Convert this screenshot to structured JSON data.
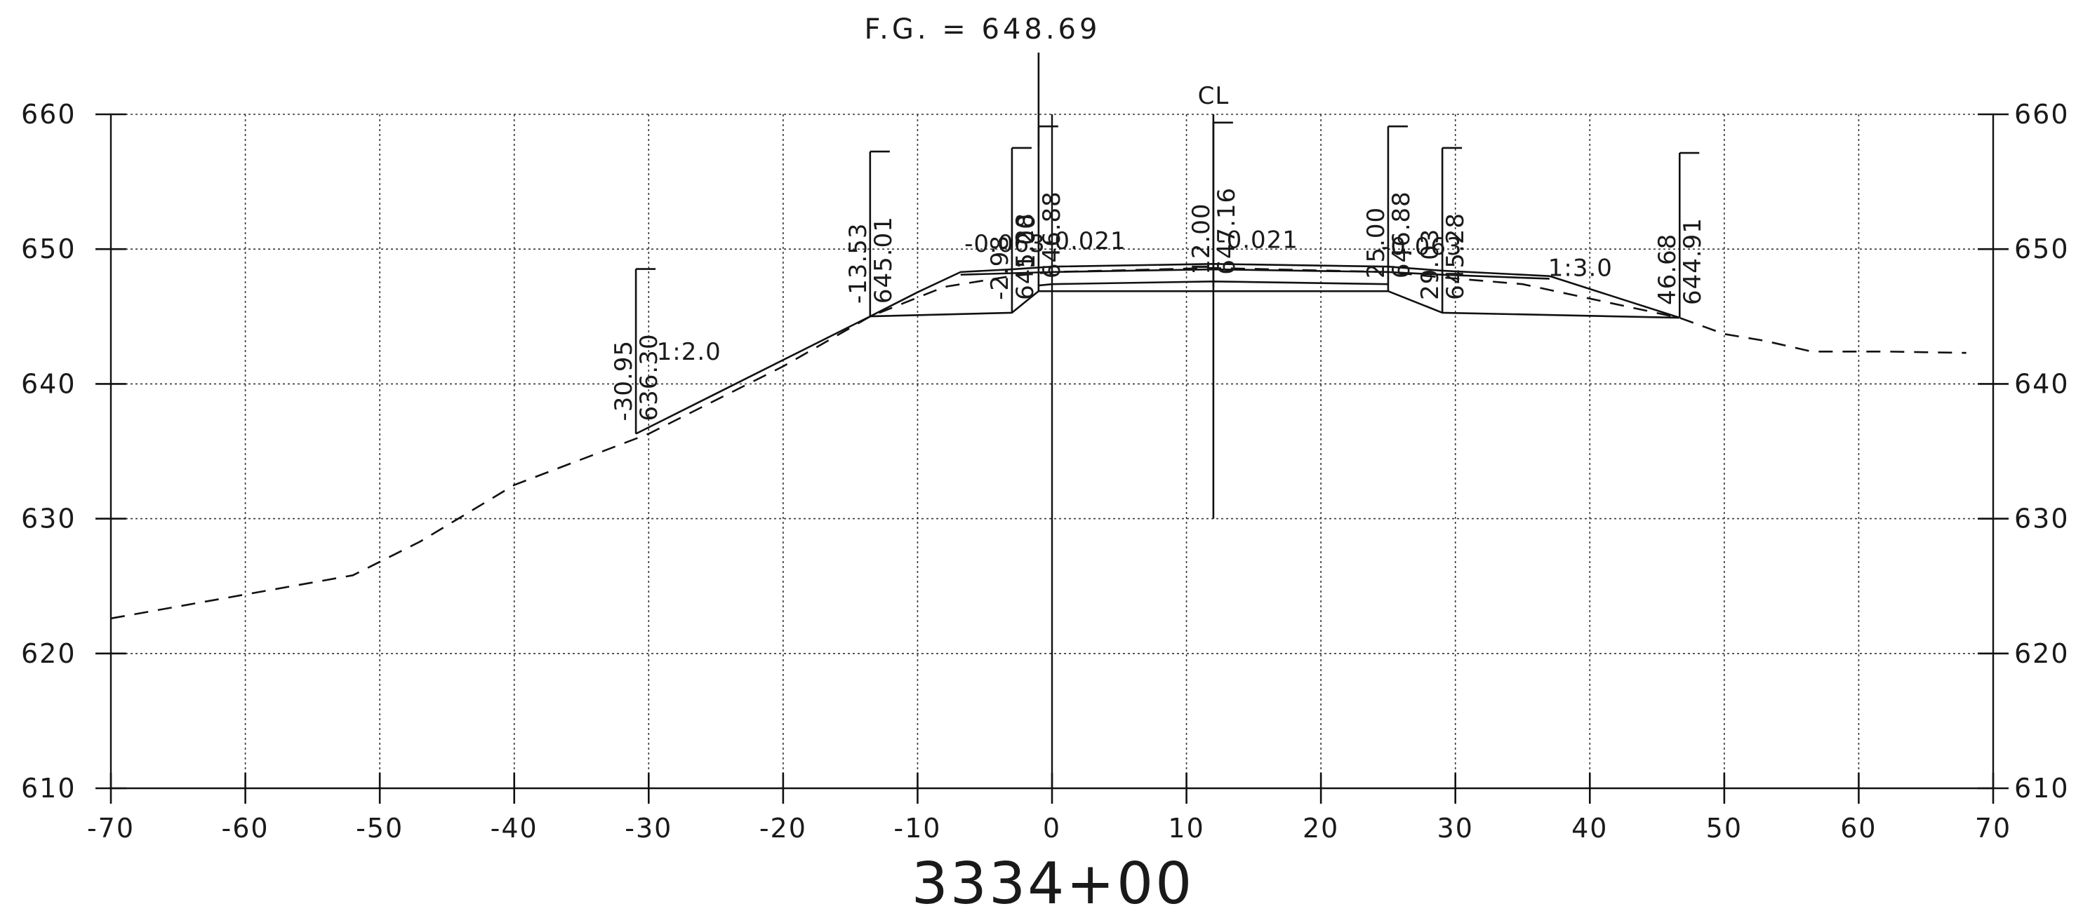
{
  "header": {
    "fg_label": "F.G. = 648.69",
    "cl_label": "CL"
  },
  "station_label": "3334+00",
  "chart_data": {
    "type": "line",
    "title": "",
    "xlabel": "",
    "ylabel": "",
    "xlim": [
      -70,
      70
    ],
    "ylim": [
      610,
      660
    ],
    "grid": true,
    "x_ticks": [
      -70,
      -60,
      -50,
      -40,
      -30,
      -20,
      -10,
      0,
      10,
      20,
      30,
      40,
      50,
      60,
      70
    ],
    "y_ticks": [
      610,
      620,
      630,
      640,
      650,
      660
    ],
    "x_tick_labels": [
      "-70",
      "-60",
      "-50",
      "-40",
      "-30",
      "-20",
      "-10",
      "0",
      "10",
      "20",
      "30",
      "40",
      "50",
      "60",
      "70"
    ],
    "y_tick_labels": [
      "610",
      "620",
      "630",
      "640",
      "650",
      "660"
    ],
    "series": [
      {
        "style": "dashed",
        "x": [
          -70,
          -52,
          -47,
          -40,
          -30,
          -20,
          -13.53,
          -8,
          -3,
          0,
          12,
          25,
          29,
          35,
          46.68,
          50,
          53,
          56.5,
          62,
          68
        ],
        "y": [
          622.6,
          625.8,
          628.3,
          632.5,
          636.3,
          641.3,
          645.0,
          647.2,
          648.0,
          648.3,
          648.6,
          648.3,
          647.9,
          647.4,
          644.9,
          643.7,
          643.2,
          642.4,
          642.4,
          642.3
        ]
      },
      {
        "style": "solid",
        "x": [
          -30.95,
          -13.53,
          -10,
          -6.8,
          -3,
          0,
          12,
          25,
          29,
          37,
          46.68
        ],
        "y": [
          636.3,
          645.01,
          646.8,
          648.3,
          648.5,
          648.7,
          648.9,
          648.7,
          648.4,
          648.0,
          644.91
        ]
      },
      {
        "style": "solid",
        "x": [
          -6.8,
          0,
          12,
          25,
          29,
          37
        ],
        "y": [
          648.1,
          648.3,
          648.5,
          648.3,
          648.1,
          647.8
        ]
      },
      {
        "style": "solid",
        "x": [
          -13.53,
          -2.98,
          -1,
          25,
          29.03,
          46.68
        ],
        "y": [
          645.01,
          645.28,
          646.88,
          646.88,
          645.28,
          644.91
        ]
      },
      {
        "style": "solid",
        "x": [
          -1,
          0,
          12,
          25
        ],
        "y": [
          647.3,
          647.4,
          647.6,
          647.4
        ]
      }
    ],
    "annotations": [
      {
        "x": -30.95,
        "y": 636.3,
        "text": [
          "-30.95",
          "636.30"
        ]
      },
      {
        "x": -13.53,
        "y": 645.01,
        "text": [
          "-13.53",
          "645.01"
        ]
      },
      {
        "x": -2.98,
        "y": 645.28,
        "text": [
          "-2.98",
          "645.28"
        ]
      },
      {
        "x": -1,
        "y": 646.88,
        "text": [
          "-1.00",
          "646.88"
        ]
      },
      {
        "x": 12,
        "y": 647.16,
        "text": [
          "12.00",
          "647.16"
        ]
      },
      {
        "x": 25,
        "y": 646.88,
        "text": [
          "25.00",
          "646.88"
        ]
      },
      {
        "x": 29.03,
        "y": 645.28,
        "text": [
          "29.03",
          "645.28"
        ]
      },
      {
        "x": 46.68,
        "y": 644.91,
        "text": [
          "46.68",
          "644.91"
        ]
      }
    ],
    "slope_labels": [
      {
        "x": -27,
        "y": 641.8,
        "text": "1:2.0"
      },
      {
        "x": 39.3,
        "y": 648.0,
        "text": "1:3.0"
      },
      {
        "x": -3.5,
        "y": 649.8,
        "text": "-0.063"
      },
      {
        "x": 2.5,
        "y": 650.0,
        "text": "-0.021"
      },
      {
        "x": 15.3,
        "y": 650.1,
        "text": "-0.021"
      },
      {
        "x": 27.5,
        "y": 649.6,
        "text": "-0.063"
      }
    ]
  }
}
